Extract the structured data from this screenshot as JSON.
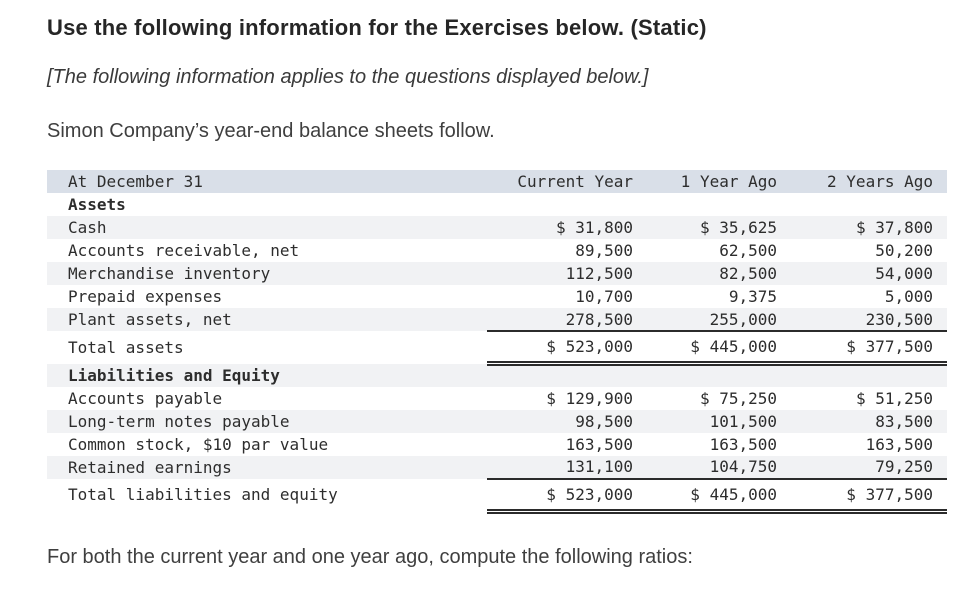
{
  "header": {
    "title": "Use the following information for the Exercises below. (Static)",
    "note": "[The following information applies to the questions displayed below.]",
    "intro": "Simon Company’s year-end balance sheets follow."
  },
  "table": {
    "columns": [
      "At December 31",
      "Current Year",
      "1 Year Ago",
      "2 Years Ago"
    ],
    "rows": [
      {
        "label": "Assets",
        "values": [
          "",
          "",
          ""
        ],
        "type": "section",
        "shaded": false
      },
      {
        "label": "Cash",
        "values": [
          "$ 31,800",
          "$ 35,625",
          "$ 37,800"
        ],
        "type": "item",
        "shaded": true
      },
      {
        "label": "Accounts receivable, net",
        "values": [
          "89,500",
          "62,500",
          "50,200"
        ],
        "type": "item",
        "shaded": false
      },
      {
        "label": "Merchandise inventory",
        "values": [
          "112,500",
          "82,500",
          "54,000"
        ],
        "type": "item",
        "shaded": true
      },
      {
        "label": "Prepaid expenses",
        "values": [
          "10,700",
          "9,375",
          "5,000"
        ],
        "type": "item",
        "shaded": false
      },
      {
        "label": "Plant assets, net",
        "values": [
          "278,500",
          "255,000",
          "230,500"
        ],
        "type": "item",
        "shaded": true,
        "rule_below": "single"
      },
      {
        "label": "Total assets",
        "values": [
          "$ 523,000",
          "$ 445,000",
          "$ 377,500"
        ],
        "type": "total",
        "shaded": false,
        "rule_below": "double"
      },
      {
        "label": "Liabilities and Equity",
        "values": [
          "",
          "",
          ""
        ],
        "type": "section",
        "shaded": true
      },
      {
        "label": "Accounts payable",
        "values": [
          "$ 129,900",
          "$ 75,250",
          "$ 51,250"
        ],
        "type": "item",
        "shaded": false
      },
      {
        "label": "Long-term notes payable",
        "values": [
          "98,500",
          "101,500",
          "83,500"
        ],
        "type": "item",
        "shaded": true
      },
      {
        "label": "Common stock, $10 par value",
        "values": [
          "163,500",
          "163,500",
          "163,500"
        ],
        "type": "item",
        "shaded": false
      },
      {
        "label": "Retained earnings",
        "values": [
          "131,100",
          "104,750",
          "79,250"
        ],
        "type": "item",
        "shaded": true,
        "rule_below": "single"
      },
      {
        "label": "Total liabilities and equity",
        "values": [
          "$ 523,000",
          "$ 445,000",
          "$ 377,500"
        ],
        "type": "total",
        "shaded": false,
        "rule_below": "double"
      }
    ]
  },
  "footer": {
    "instruction": "For both the current year and one year ago, compute the following ratios:"
  },
  "colors": {
    "header_bg": "#d9dfe8",
    "stripe_bg": "#f1f2f4",
    "table_text": "#2d2d2d",
    "rule": "#2b2b2b"
  }
}
